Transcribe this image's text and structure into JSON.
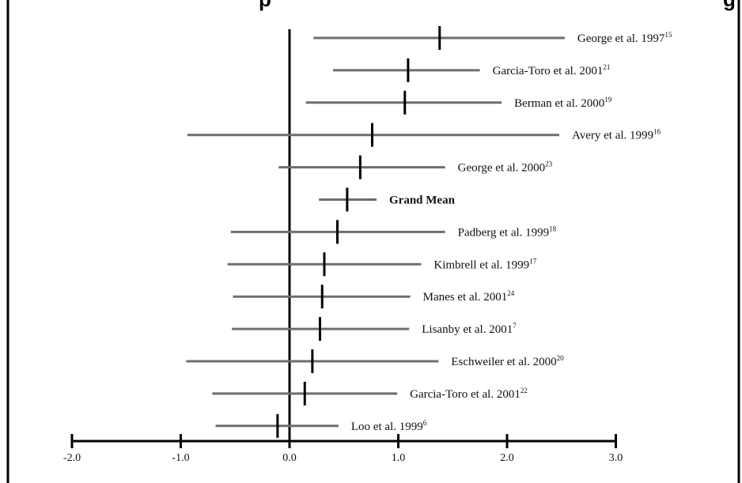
{
  "chart_data": {
    "type": "forest",
    "title_fragment_left": "p",
    "title_fragment_right": "g",
    "x_ticks": [
      "-2.0",
      "-1.0",
      "0.0",
      "1.0",
      "2.0",
      "3.0"
    ],
    "xlim": [
      -2.0,
      3.0
    ],
    "reference_line_x": 0.0,
    "studies": [
      {
        "label": "George et al. 1997",
        "ref": "15",
        "estimate": 1.38,
        "ci": [
          0.22,
          2.53
        ],
        "bold": false
      },
      {
        "label": "Garcia-Toro et al. 2001",
        "ref": "21",
        "estimate": 1.09,
        "ci": [
          0.4,
          1.75
        ],
        "bold": false
      },
      {
        "label": "Berman et al. 2000",
        "ref": "19",
        "estimate": 1.06,
        "ci": [
          0.15,
          1.95
        ],
        "bold": false
      },
      {
        "label": "Avery et al. 1999",
        "ref": "16",
        "estimate": 0.76,
        "ci": [
          -0.94,
          2.48
        ],
        "bold": false
      },
      {
        "label": "George et al. 2000",
        "ref": "23",
        "estimate": 0.65,
        "ci": [
          -0.1,
          1.43
        ],
        "bold": false
      },
      {
        "label": "Grand Mean",
        "ref": "",
        "estimate": 0.53,
        "ci": [
          0.27,
          0.8
        ],
        "bold": true
      },
      {
        "label": "Padberg et al. 1999",
        "ref": "18",
        "estimate": 0.44,
        "ci": [
          -0.54,
          1.43
        ],
        "bold": false
      },
      {
        "label": "Kimbrell et al. 1999",
        "ref": "17",
        "estimate": 0.32,
        "ci": [
          -0.57,
          1.21
        ],
        "bold": false
      },
      {
        "label": "Manes et al. 2001",
        "ref": "24",
        "estimate": 0.3,
        "ci": [
          -0.52,
          1.11
        ],
        "bold": false
      },
      {
        "label": "Lisanby et al. 2001",
        "ref": "7",
        "estimate": 0.28,
        "ci": [
          -0.53,
          1.1
        ],
        "bold": false
      },
      {
        "label": "Eschweiler et al. 2000",
        "ref": "20",
        "estimate": 0.21,
        "ci": [
          -0.95,
          1.37
        ],
        "bold": false
      },
      {
        "label": "Garcia-Toro et al. 2001",
        "ref": "22",
        "estimate": 0.14,
        "ci": [
          -0.71,
          0.99
        ],
        "bold": false
      },
      {
        "label": "Loo et al. 1999",
        "ref": "6",
        "estimate": -0.11,
        "ci": [
          -0.68,
          0.45
        ],
        "bold": false
      }
    ]
  }
}
